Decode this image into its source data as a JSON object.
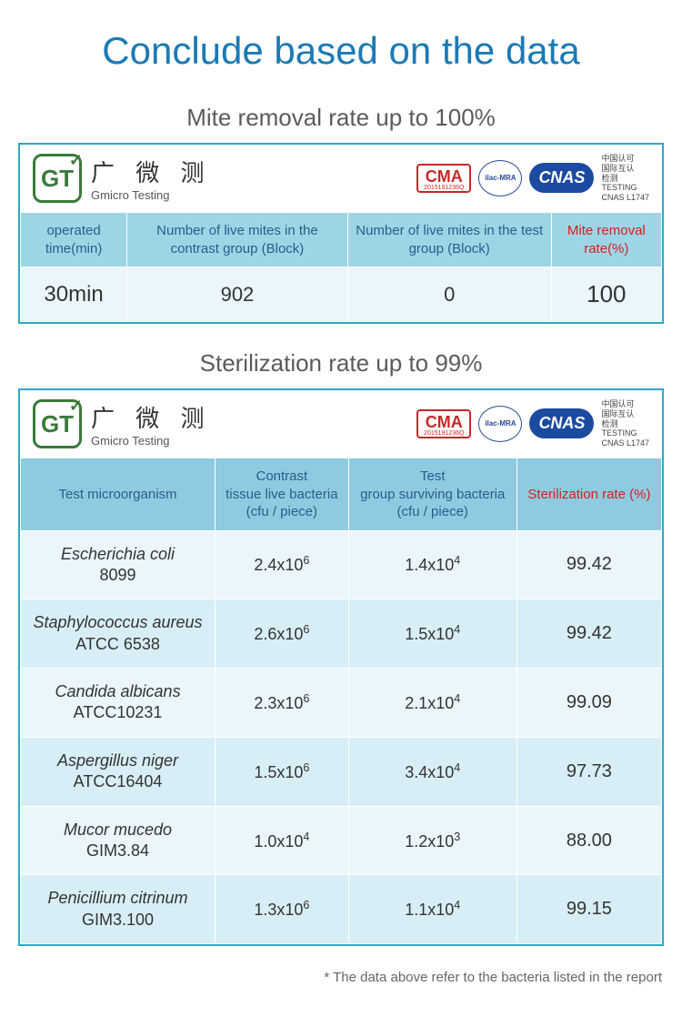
{
  "page_title": "Conclude based on the data",
  "title_color": "#1b7ab5",
  "mite_section": {
    "subtitle": "Mite removal rate up to 100%",
    "border_color": "#2aa9c6",
    "header_bg": "#9ed5e6",
    "row_bg": "#eaf6fb",
    "columns": [
      "operated time(min)",
      "Number of live mites in the contrast group (Block)",
      "Number of live mites in the test group (Block)",
      "Mite removal rate(%)"
    ],
    "row": {
      "time": "30min",
      "contrast": "902",
      "test": "0",
      "rate": "100"
    }
  },
  "steril_section": {
    "subtitle": "Sterilization rate up to 99%",
    "border_color": "#2aa9c6",
    "header_bg": "#8fcbe0",
    "row_bg_a": "#eaf6fb",
    "row_bg_b": "#d8eef7",
    "columns": [
      "Test microorganism",
      "Contrast\ntissue live bacteria\n(cfu / piece)",
      "Test\ngroup surviving bacteria\n(cfu / piece)",
      "Sterilization rate (%)"
    ],
    "rows": [
      {
        "organism_line1": "Escherichia coli",
        "organism_line2": "8099",
        "contrast_base": "2.4x10",
        "contrast_exp": "6",
        "test_base": "1.4x10",
        "test_exp": "4",
        "rate": "99.42"
      },
      {
        "organism_line1": "Staphylococcus aureus",
        "organism_line2": "ATCC 6538",
        "contrast_base": "2.6x10",
        "contrast_exp": "6",
        "test_base": "1.5x10",
        "test_exp": "4",
        "rate": "99.42"
      },
      {
        "organism_line1": "Candida albicans",
        "organism_line2": "ATCC10231",
        "contrast_base": "2.3x10",
        "contrast_exp": "6",
        "test_base": "2.1x10",
        "test_exp": "4",
        "rate": "99.09"
      },
      {
        "organism_line1": "Aspergillus niger",
        "organism_line2": "ATCC16404",
        "contrast_base": "1.5x10",
        "contrast_exp": "6",
        "test_base": "3.4x10",
        "test_exp": "4",
        "rate": "97.73"
      },
      {
        "organism_line1": "Mucor mucedo",
        "organism_line2": "GIM3.84",
        "contrast_base": "1.0x10",
        "contrast_exp": "4",
        "test_base": "1.2x10",
        "test_exp": "3",
        "rate": "88.00"
      },
      {
        "organism_line1": "Penicillium citrinum",
        "organism_line2": "GIM3.100",
        "contrast_base": "1.3x10",
        "contrast_exp": "6",
        "test_base": "1.1x10",
        "test_exp": "4",
        "rate": "99.15"
      }
    ]
  },
  "cert": {
    "gt_mark": "GT",
    "gt_cn": "广 微 测",
    "gt_en": "Gmicro Testing",
    "ma_label": "MA",
    "ma_code": "2015191236Q",
    "ilac_label": "ilac-MRA",
    "cnas_label": "CNAS",
    "cnas_cn1": "中国认可",
    "cnas_cn2": "国际互认",
    "cnas_cn3": "检测",
    "cnas_en1": "TESTING",
    "cnas_en2": "CNAS L1747"
  },
  "footnote": "* The data above refer to the bacteria listed in the report",
  "red_color": "#d32020"
}
